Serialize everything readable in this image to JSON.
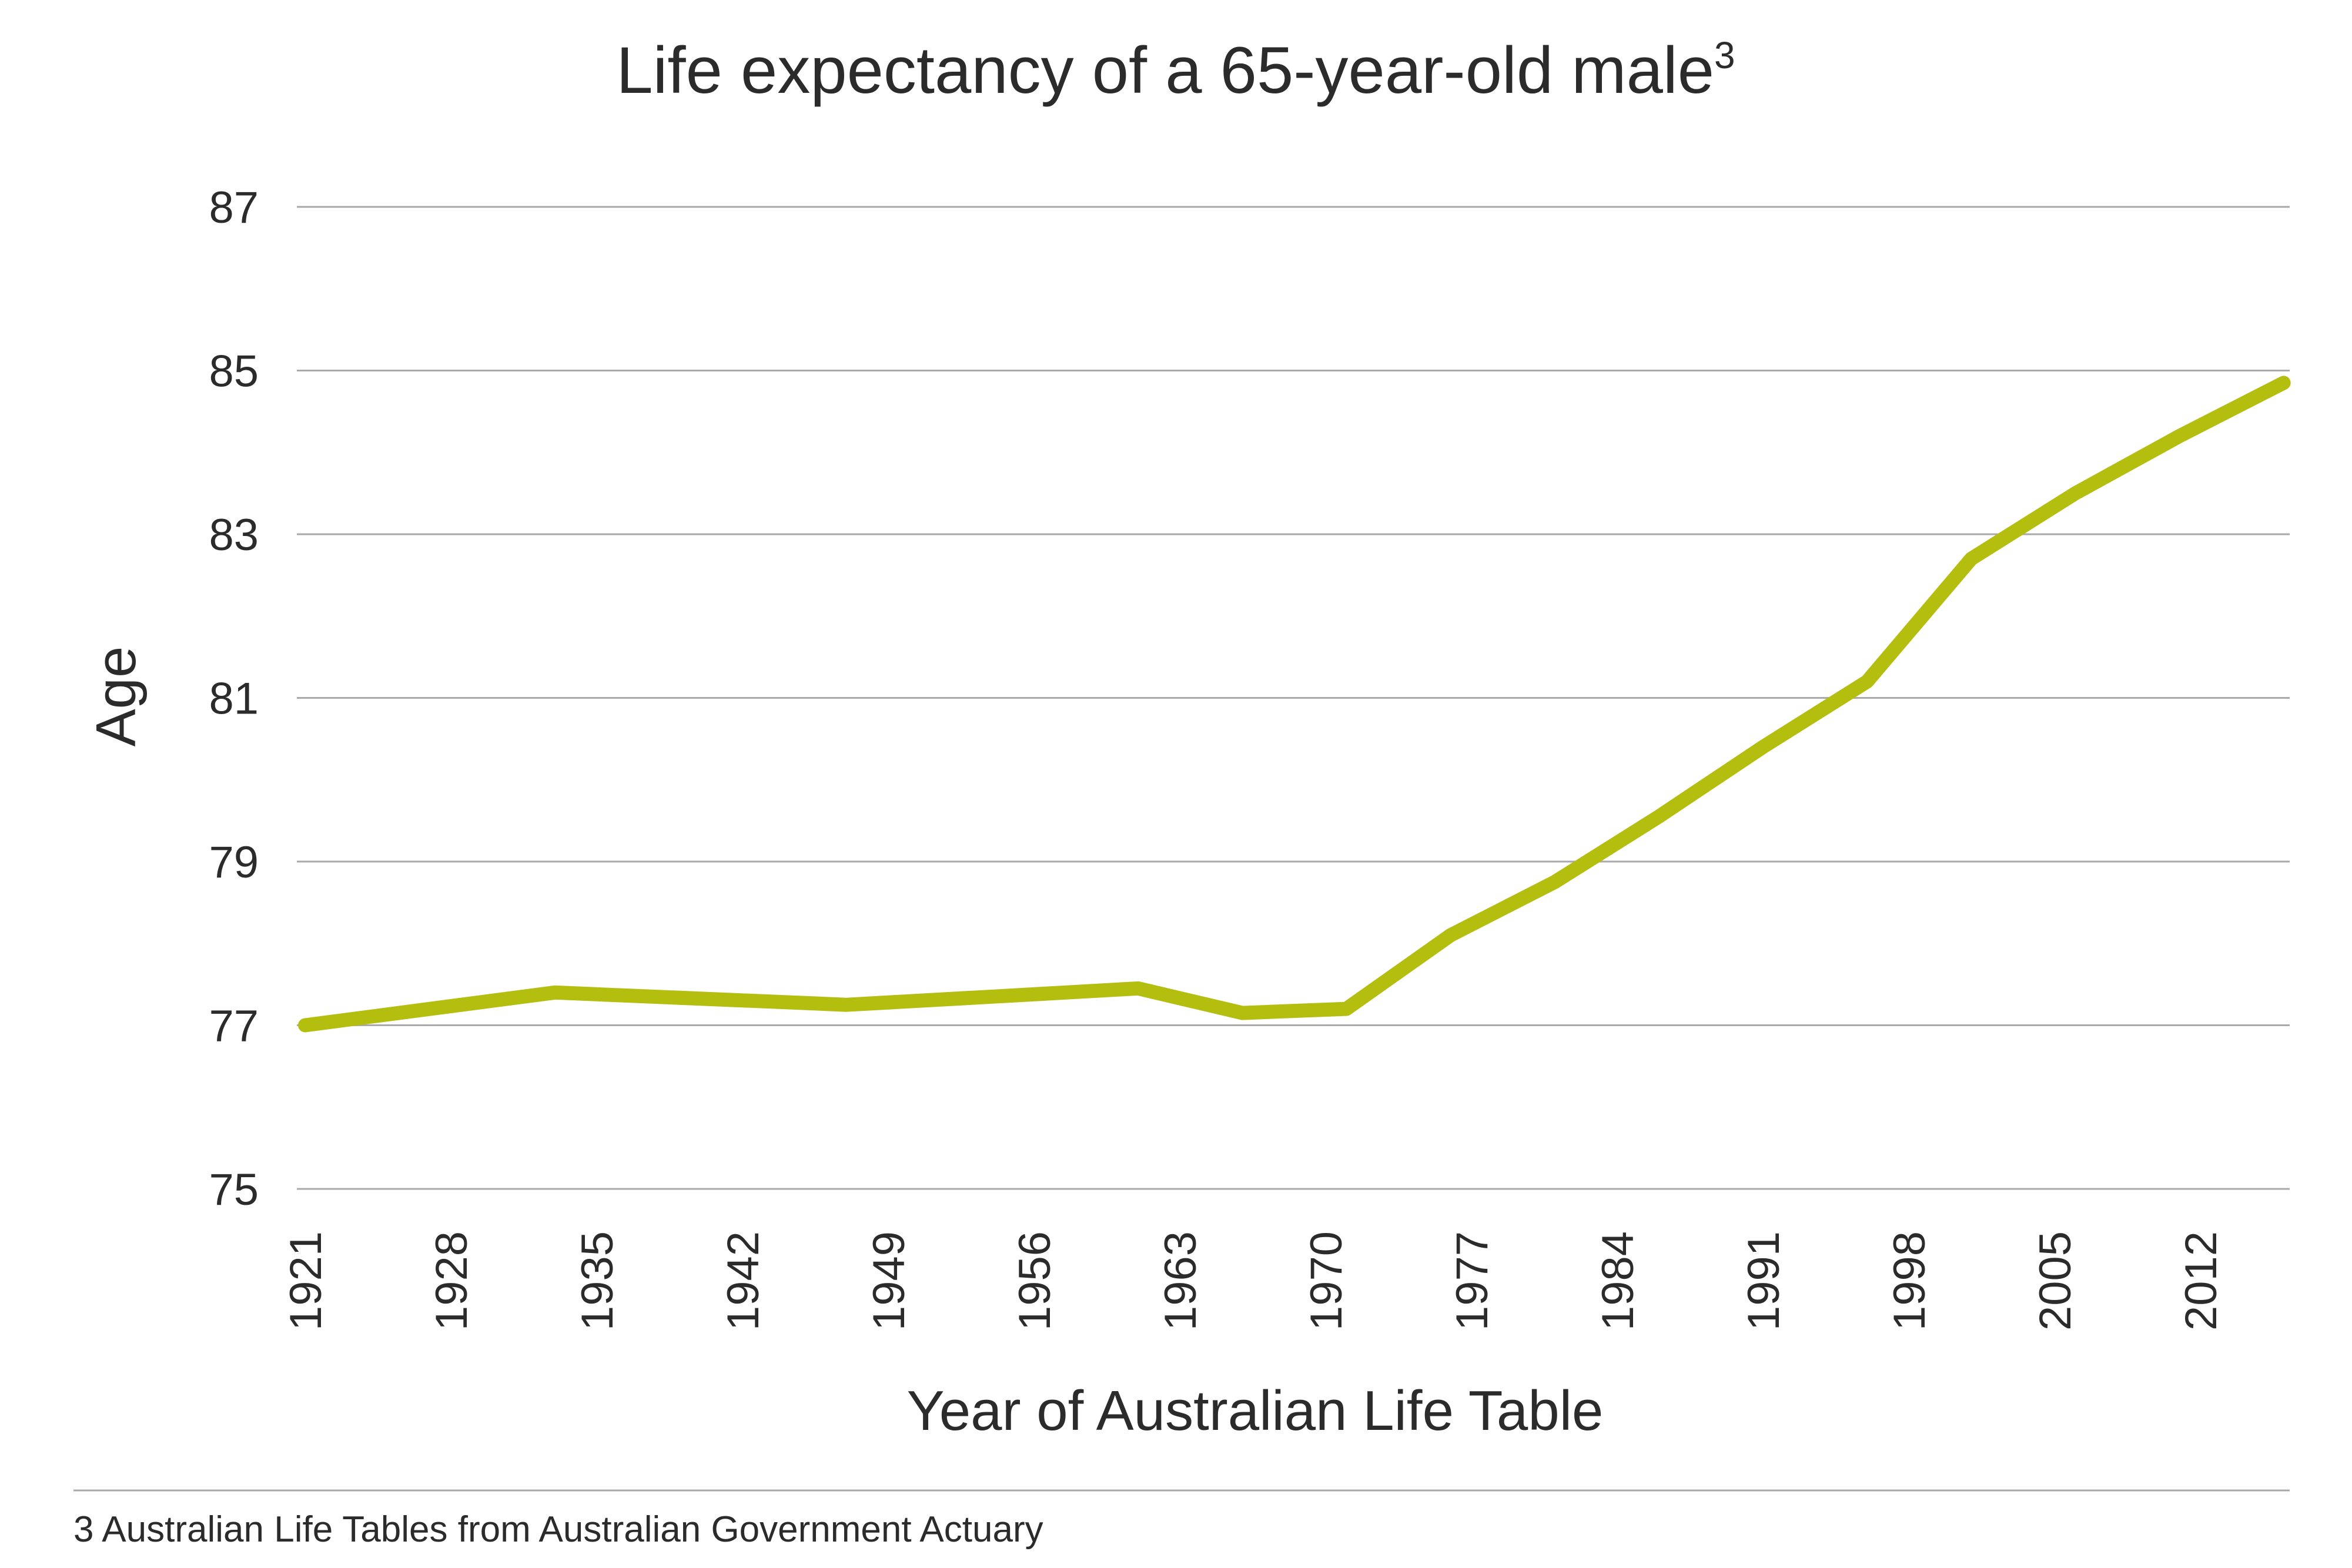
{
  "chart_data": {
    "type": "line",
    "title": "Life expectancy of a 65-year-old male",
    "title_superscript": "3",
    "xlabel": "Year of Australian Life Table",
    "ylabel": "Age",
    "ylim": [
      75,
      87
    ],
    "yticks": [
      "75",
      "77",
      "79",
      "81",
      "83",
      "85",
      "87"
    ],
    "xlim": [
      1921,
      2017
    ],
    "xticks": [
      "1921",
      "1928",
      "1935",
      "1942",
      "1949",
      "1956",
      "1963",
      "1970",
      "1977",
      "1984",
      "1991",
      "1998",
      "2005",
      "2012"
    ],
    "grid": "horizontal",
    "line_color": "#b3be0f",
    "grid_color": "#a9a9a9",
    "series": [
      {
        "x": [
          1921,
          1933,
          1947,
          1954,
          1961,
          1966,
          1971,
          1976,
          1981,
          1986,
          1991,
          1996,
          2001,
          2006,
          2011,
          2016
        ],
        "values": [
          77.0,
          77.4,
          77.25,
          77.35,
          77.45,
          77.15,
          77.2,
          78.1,
          78.75,
          79.55,
          80.4,
          81.2,
          82.7,
          83.5,
          84.2,
          84.85
        ]
      }
    ]
  },
  "footnote": "3 Australian Life Tables from Australian Government Actuary"
}
